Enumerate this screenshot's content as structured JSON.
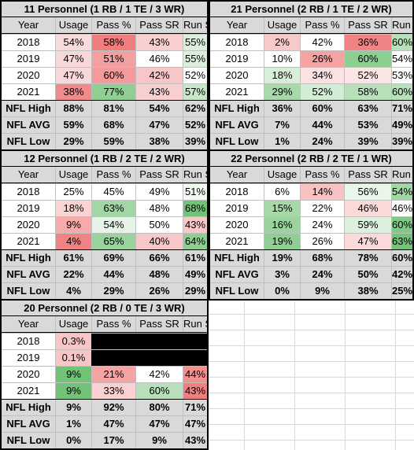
{
  "tables": [
    {
      "title": "11 Personnel (1 RB / 1 TE / 3 WR)",
      "headers": [
        "Year",
        "Usage",
        "Pass %",
        "Pass SR",
        "Run SR"
      ],
      "rows": [
        [
          "2018",
          "54%",
          "58%",
          "43%",
          "55%"
        ],
        [
          "2019",
          "47%",
          "51%",
          "46%",
          "55%"
        ],
        [
          "2020",
          "47%",
          "60%",
          "42%",
          "52%"
        ],
        [
          "2021",
          "38%",
          "77%",
          "43%",
          "57%"
        ]
      ],
      "colors": [
        [
          "#ffffff",
          "#f8dcdc",
          "#f07e7e",
          "#f8d0d0",
          "#dbefdc"
        ],
        [
          "#ffffff",
          "#f8d8d8",
          "#f2a0a0",
          "#ffffff",
          "#dbefdc"
        ],
        [
          "#ffffff",
          "#f8d8d8",
          "#f49a9a",
          "#f8c6c6",
          "#ffffff"
        ],
        [
          "#ffffff",
          "#f18b8b",
          "#8fcf93",
          "#f8d0d0",
          "#c7e7c9"
        ]
      ],
      "stats": [
        [
          "NFL High",
          "88%",
          "81%",
          "54%",
          "62%"
        ],
        [
          "NFL AVG",
          "59%",
          "68%",
          "47%",
          "52%"
        ],
        [
          "NFL Low",
          "29%",
          "59%",
          "38%",
          "39%"
        ]
      ]
    },
    {
      "title": "21 Personnel (2 RB / 1 TE / 2 WR)",
      "headers": [
        "Year",
        "Usage",
        "Pass %",
        "Pass SR",
        "Run SR"
      ],
      "rows": [
        [
          "2018",
          "2%",
          "42%",
          "36%",
          "60%"
        ],
        [
          "2019",
          "10%",
          "26%",
          "60%",
          "54%"
        ],
        [
          "2020",
          "18%",
          "34%",
          "52%",
          "53%"
        ],
        [
          "2021",
          "29%",
          "52%",
          "58%",
          "60%"
        ]
      ],
      "colors": [
        [
          "#ffffff",
          "#f7c9c9",
          "#ffffff",
          "#f08484",
          "#b8e0bb"
        ],
        [
          "#ffffff",
          "#ffffff",
          "#f4a2a2",
          "#8ccf91",
          "#ffffff"
        ],
        [
          "#ffffff",
          "#d8eed9",
          "#fbe3e3",
          "#fbe5e5",
          "#ffffff"
        ],
        [
          "#ffffff",
          "#a8d9ab",
          "#d3ecd4",
          "#b8e0bb",
          "#b8e0bb"
        ]
      ],
      "stats": [
        [
          "NFL High",
          "36%",
          "60%",
          "63%",
          "71%"
        ],
        [
          "NFL AVG",
          "7%",
          "44%",
          "53%",
          "49%"
        ],
        [
          "NFL Low",
          "1%",
          "24%",
          "39%",
          "39%"
        ]
      ]
    },
    {
      "title": "12 Personnel (1 RB / 2 TE / 2 WR)",
      "headers": [
        "Year",
        "Usage",
        "Pass %",
        "Pass SR",
        "Run SR"
      ],
      "rows": [
        [
          "2018",
          "25%",
          "45%",
          "49%",
          "51%"
        ],
        [
          "2019",
          "18%",
          "63%",
          "48%",
          "68%"
        ],
        [
          "2020",
          "9%",
          "54%",
          "50%",
          "43%"
        ],
        [
          "2021",
          "4%",
          "65%",
          "40%",
          "64%"
        ]
      ],
      "colors": [
        [
          "#ffffff",
          "#ffffff",
          "#ffffff",
          "#ffffff",
          "#f1f9f1"
        ],
        [
          "#ffffff",
          "#fad3d3",
          "#a2d6a5",
          "#ffffff",
          "#6fc276"
        ],
        [
          "#ffffff",
          "#f6aaaa",
          "#e6f4e7",
          "#ffffff",
          "#f8c8c8"
        ],
        [
          "#ffffff",
          "#f08484",
          "#98d29c",
          "#f8c8c8",
          "#8ccf91"
        ]
      ],
      "stats": [
        [
          "NFL High",
          "61%",
          "69%",
          "66%",
          "61%"
        ],
        [
          "NFL AVG",
          "22%",
          "44%",
          "48%",
          "49%"
        ],
        [
          "NFL Low",
          "4%",
          "29%",
          "26%",
          "29%"
        ]
      ]
    },
    {
      "title": "22 Personnel (2 RB / 2 TE / 1 WR)",
      "headers": [
        "Year",
        "Usage",
        "Pass %",
        "Pass SR",
        "Run SR"
      ],
      "rows": [
        [
          "2018",
          "6%",
          "14%",
          "56%",
          "54%"
        ],
        [
          "2019",
          "15%",
          "22%",
          "46%",
          "46%"
        ],
        [
          "2020",
          "16%",
          "24%",
          "59%",
          "60%"
        ],
        [
          "2021",
          "19%",
          "26%",
          "47%",
          "63%"
        ]
      ],
      "colors": [
        [
          "#ffffff",
          "#ffffff",
          "#f7c2c2",
          "#e9f6ea",
          "#a2d6a5"
        ],
        [
          "#ffffff",
          "#a6d8a9",
          "#ffffff",
          "#fbdada",
          "#ffffff"
        ],
        [
          "#ffffff",
          "#9ad39e",
          "#ffffff",
          "#dcf0dd",
          "#82c988"
        ],
        [
          "#ffffff",
          "#8fcf93",
          "#ffffff",
          "#fbdada",
          "#72c278"
        ]
      ],
      "stats": [
        [
          "NFL High",
          "19%",
          "68%",
          "78%",
          "60%"
        ],
        [
          "NFL AVG",
          "3%",
          "24%",
          "50%",
          "42%"
        ],
        [
          "NFL Low",
          "0%",
          "9%",
          "38%",
          "25%"
        ]
      ]
    },
    {
      "title": "20 Personnel (2 RB / 0 TE / 3 WR)",
      "headers": [
        "Year",
        "Usage",
        "Pass %",
        "Pass SR",
        "Run SR"
      ],
      "rows": [
        [
          "2018",
          "0.3%",
          "",
          "",
          ""
        ],
        [
          "2019",
          "0.1%",
          "",
          "",
          ""
        ],
        [
          "2020",
          "9%",
          "21%",
          "42%",
          "44%"
        ],
        [
          "2021",
          "9%",
          "33%",
          "60%",
          "43%"
        ]
      ],
      "colors": [
        [
          "#ffffff",
          "#f8c6c6",
          "blank",
          "blank",
          "blank"
        ],
        [
          "#ffffff",
          "#f8c6c6",
          "blank",
          "blank",
          "blank"
        ],
        [
          "#ffffff",
          "#72c278",
          "#f5a3a3",
          "#ffffff",
          "#f29090"
        ],
        [
          "#ffffff",
          "#72c278",
          "#fbd0d0",
          "#b8e0bb",
          "#f17f7f"
        ]
      ],
      "stats": [
        [
          "NFL High",
          "9%",
          "92%",
          "80%",
          "71%"
        ],
        [
          "NFL AVG",
          "1%",
          "47%",
          "47%",
          "47%"
        ],
        [
          "NFL Low",
          "0%",
          "17%",
          "9%",
          "43%"
        ]
      ]
    }
  ]
}
